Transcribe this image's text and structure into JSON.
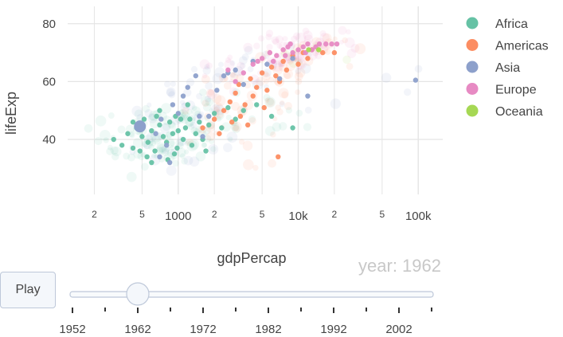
{
  "chart_data": {
    "type": "scatter",
    "title": "",
    "xlabel": "gdpPercap",
    "ylabel": "lifeExp",
    "x_scale": "log",
    "xlim": [
      120,
      160000
    ],
    "ylim": [
      21,
      86
    ],
    "x_ticks": [
      {
        "value": 200,
        "label": "2",
        "major": false
      },
      {
        "value": 500,
        "label": "5",
        "major": false
      },
      {
        "value": 1000,
        "label": "1000",
        "major": true
      },
      {
        "value": 2000,
        "label": "2",
        "major": false
      },
      {
        "value": 5000,
        "label": "5",
        "major": false
      },
      {
        "value": 10000,
        "label": "10k",
        "major": true
      },
      {
        "value": 20000,
        "label": "2",
        "major": false
      },
      {
        "value": 50000,
        "label": "5",
        "major": false
      },
      {
        "value": 100000,
        "label": "100k",
        "major": true
      }
    ],
    "y_ticks": [
      40,
      60,
      80
    ],
    "grid": true,
    "legend_position": "right",
    "frame_label": "year: 1962",
    "series": [
      {
        "name": "Africa",
        "color": "#66c2a5",
        "points": [
          [
            290,
            40
          ],
          [
            340,
            38
          ],
          [
            380,
            42
          ],
          [
            420,
            37
          ],
          [
            450,
            44
          ],
          [
            500,
            41
          ],
          [
            520,
            47
          ],
          [
            560,
            39
          ],
          [
            600,
            43
          ],
          [
            640,
            36
          ],
          [
            700,
            45
          ],
          [
            750,
            41
          ],
          [
            800,
            39
          ],
          [
            850,
            46
          ],
          [
            900,
            42
          ],
          [
            950,
            48
          ],
          [
            1000,
            43
          ],
          [
            1100,
            40
          ],
          [
            1150,
            44
          ],
          [
            1250,
            47
          ],
          [
            1400,
            42
          ],
          [
            1500,
            46
          ],
          [
            1600,
            40
          ],
          [
            1800,
            45
          ],
          [
            2000,
            49
          ],
          [
            2300,
            44
          ],
          [
            2600,
            51
          ],
          [
            3000,
            47
          ],
          [
            3500,
            50
          ],
          [
            4500,
            52
          ],
          [
            6000,
            48
          ],
          [
            9000,
            44
          ],
          [
            1200,
            52
          ],
          [
            700,
            50
          ],
          [
            550,
            34
          ],
          [
            420,
            46
          ],
          [
            480,
            36
          ],
          [
            600,
            32
          ],
          [
            820,
            33
          ],
          [
            980,
            37
          ],
          [
            1300,
            38
          ],
          [
            1700,
            36
          ],
          [
            660,
            48
          ],
          [
            930,
            35
          ],
          [
            1050,
            47
          ]
        ]
      },
      {
        "name": "Americas",
        "color": "#fc8d62",
        "points": [
          [
            1600,
            44
          ],
          [
            2000,
            47
          ],
          [
            2400,
            50
          ],
          [
            2700,
            53
          ],
          [
            3000,
            56
          ],
          [
            3200,
            59
          ],
          [
            3600,
            52
          ],
          [
            4000,
            61
          ],
          [
            4500,
            58
          ],
          [
            5000,
            63
          ],
          [
            5500,
            57
          ],
          [
            6000,
            65
          ],
          [
            6500,
            62
          ],
          [
            7500,
            67
          ],
          [
            8000,
            64
          ],
          [
            9000,
            69
          ],
          [
            10000,
            66
          ],
          [
            11000,
            70
          ],
          [
            13000,
            71
          ],
          [
            16000,
            70
          ],
          [
            4200,
            55
          ],
          [
            7000,
            60
          ],
          [
            3300,
            48
          ],
          [
            5200,
            51
          ],
          [
            6800,
            34
          ],
          [
            2200,
            42
          ],
          [
            3800,
            45
          ],
          [
            12000,
            68
          ],
          [
            20000,
            70
          ],
          [
            2800,
            46
          ]
        ]
      },
      {
        "name": "Asia",
        "color": "#8da0cb",
        "points": [
          [
            480,
            44.5
          ],
          [
            720,
            47
          ],
          [
            800,
            38
          ],
          [
            900,
            52
          ],
          [
            1000,
            49
          ],
          [
            1100,
            55
          ],
          [
            1200,
            58
          ],
          [
            1400,
            62
          ],
          [
            1600,
            41
          ],
          [
            1800,
            48
          ],
          [
            2100,
            57
          ],
          [
            2400,
            62
          ],
          [
            3000,
            64
          ],
          [
            3500,
            59
          ],
          [
            4200,
            67
          ],
          [
            5500,
            66
          ],
          [
            7000,
            61
          ],
          [
            9000,
            68
          ],
          [
            12000,
            55
          ],
          [
            700,
            34
          ],
          [
            850,
            32
          ],
          [
            650,
            42
          ],
          [
            1500,
            48
          ],
          [
            2600,
            63
          ],
          [
            95000,
            60.5
          ]
        ]
      },
      {
        "name": "Europe",
        "color": "#e78ac3",
        "points": [
          [
            3000,
            60
          ],
          [
            3500,
            63
          ],
          [
            4200,
            66
          ],
          [
            5000,
            68
          ],
          [
            5800,
            70
          ],
          [
            6600,
            69
          ],
          [
            7500,
            71
          ],
          [
            8200,
            72
          ],
          [
            9000,
            70
          ],
          [
            10000,
            71
          ],
          [
            11000,
            72
          ],
          [
            12000,
            73
          ],
          [
            13000,
            71
          ],
          [
            14000,
            72
          ],
          [
            15000,
            73
          ],
          [
            17000,
            73
          ],
          [
            19000,
            73
          ],
          [
            21000,
            73
          ],
          [
            4600,
            67
          ],
          [
            6200,
            67
          ],
          [
            2600,
            64
          ],
          [
            7800,
            69
          ],
          [
            8600,
            73
          ],
          [
            11500,
            70
          ]
        ]
      },
      {
        "name": "Oceania",
        "color": "#a6d854",
        "points": [
          [
            12200,
            71
          ],
          [
            14800,
            71
          ]
        ]
      }
    ]
  },
  "slider": {
    "play_label": "Play",
    "labels": [
      "1952",
      "1962",
      "1972",
      "1982",
      "1992",
      "2002"
    ],
    "years": [
      1952,
      1957,
      1962,
      1967,
      1972,
      1977,
      1982,
      1987,
      1992,
      1997,
      2002,
      2007
    ],
    "current": 1962
  },
  "colors": {
    "grid": "#e5e5e5",
    "slider_track": "#bec8d9"
  }
}
